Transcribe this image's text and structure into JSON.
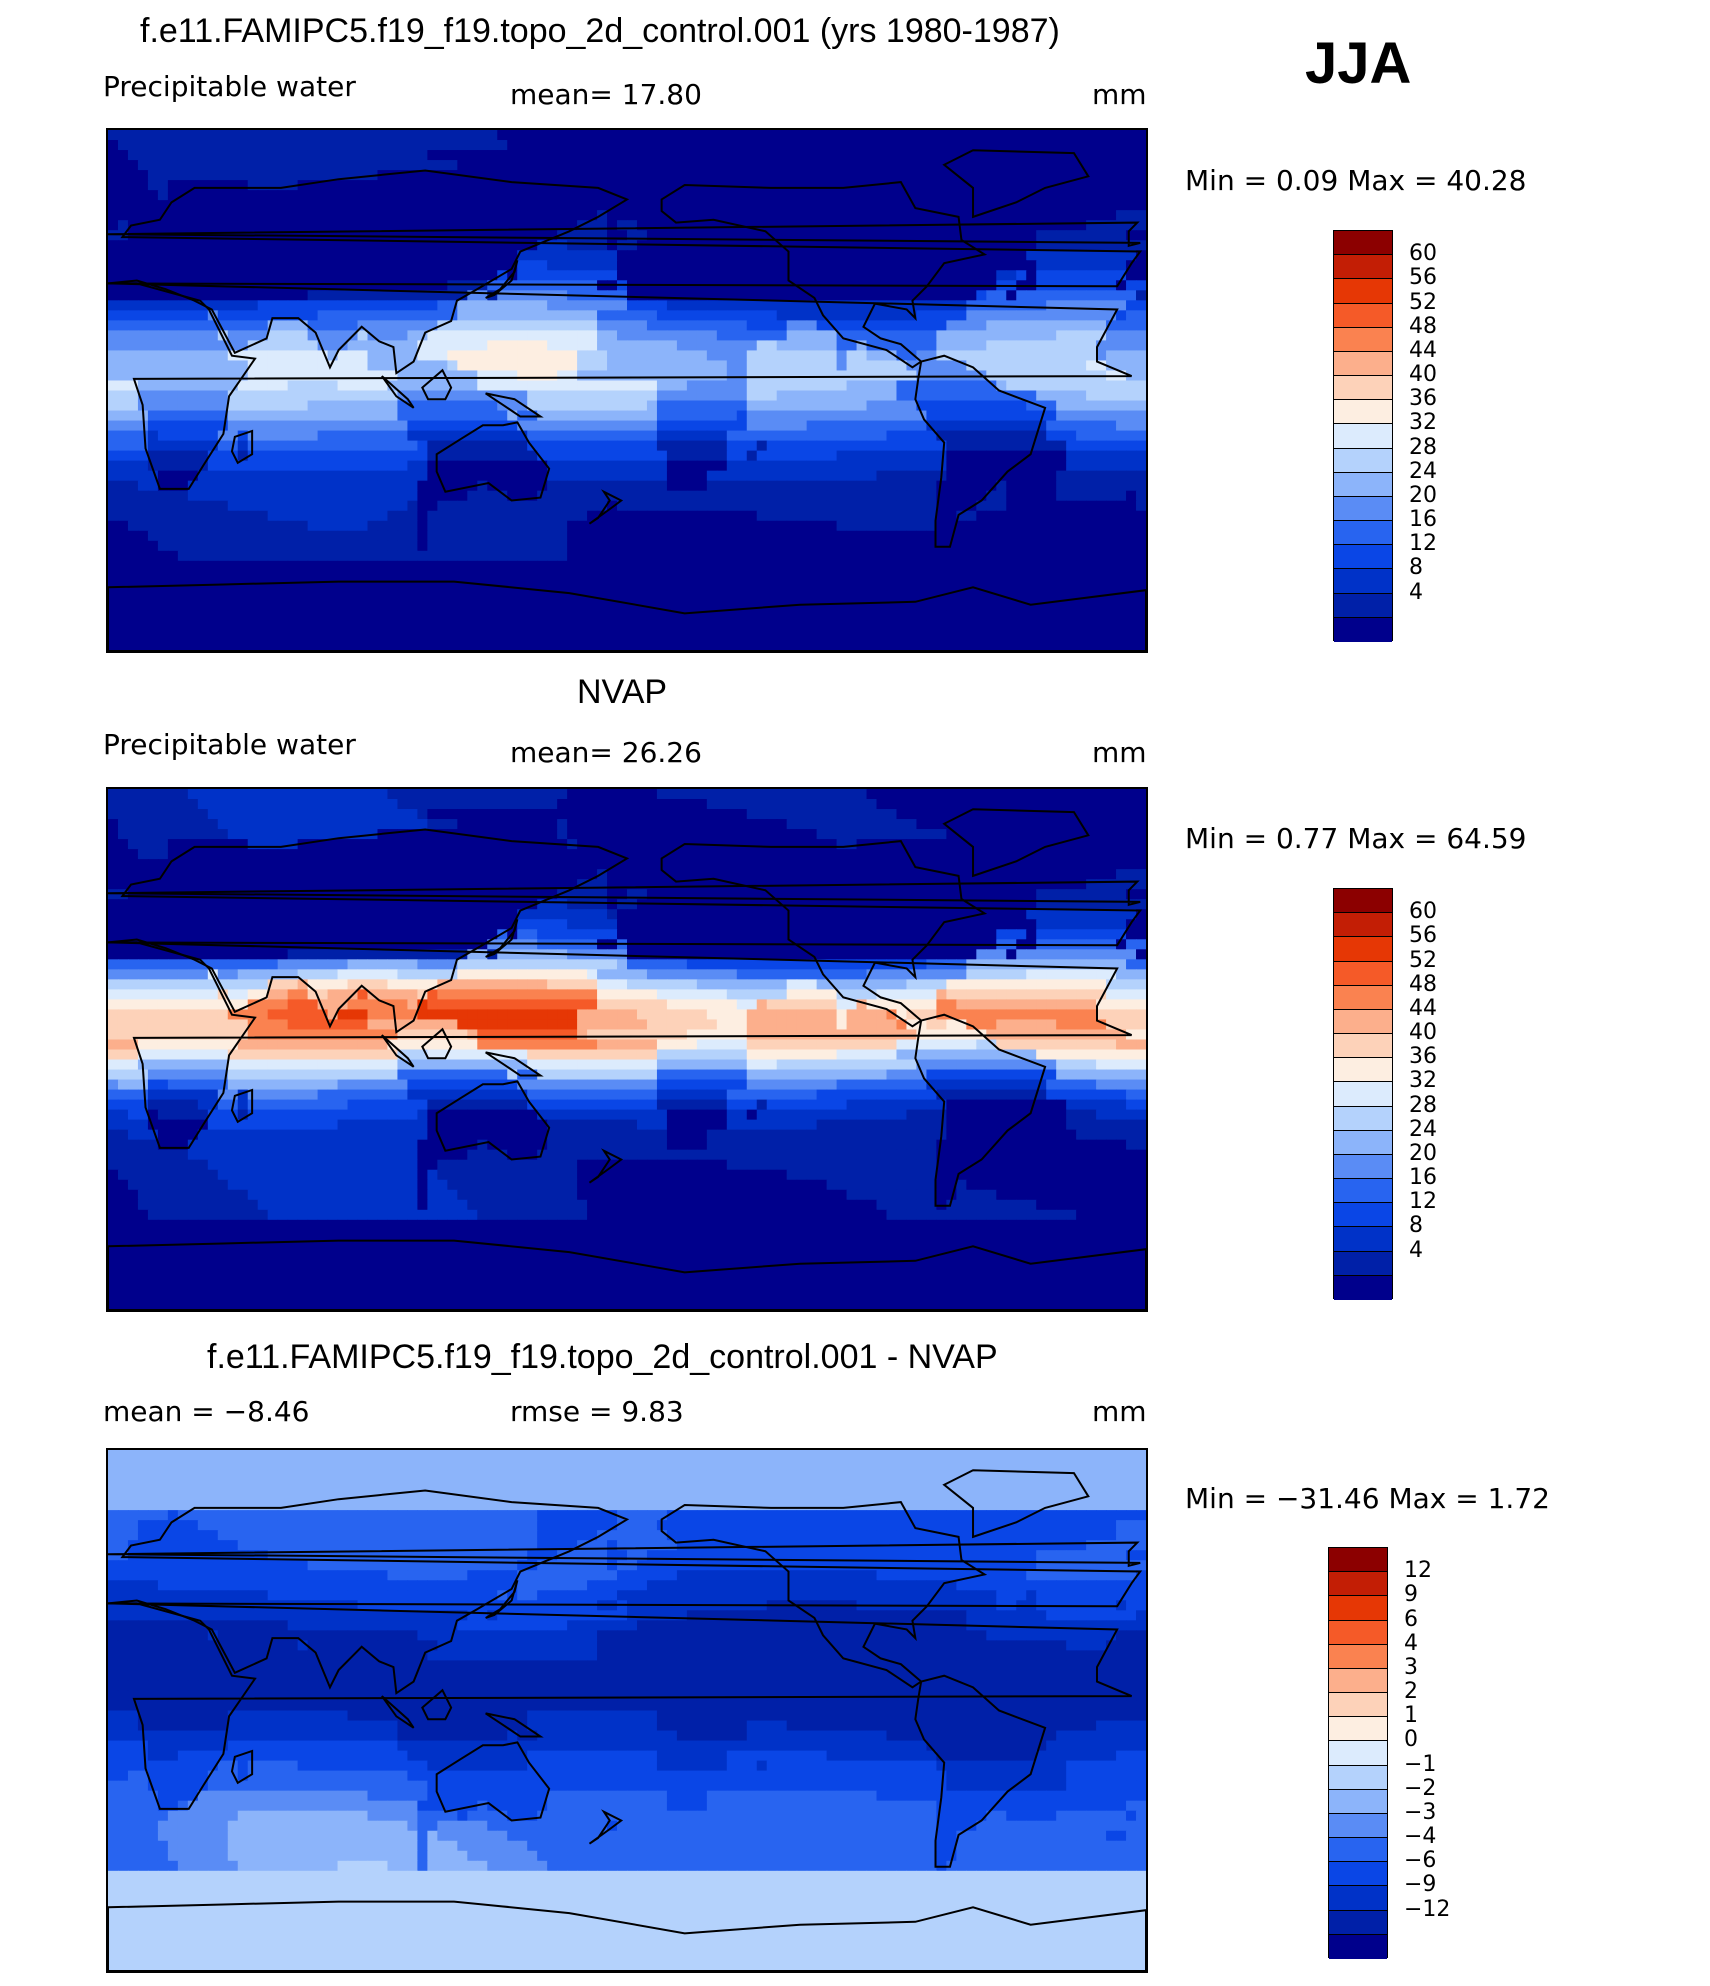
{
  "season": "JJA",
  "colors": {
    "abs": [
      "#00008c",
      "#0020a8",
      "#0032c8",
      "#0a46e6",
      "#2864f0",
      "#5a8cf5",
      "#8cb4fa",
      "#b4d2fc",
      "#dcebfd",
      "#fdeee1",
      "#fdd2b9",
      "#fcaf8c",
      "#fa8250",
      "#f55a28",
      "#e63705",
      "#c31e05",
      "#8c0000"
    ],
    "diff": [
      "#00008c",
      "#0020a8",
      "#0032c8",
      "#0a46e6",
      "#2864f0",
      "#5a8cf5",
      "#8cb4fa",
      "#b4d2fc",
      "#dcebfd",
      "#fdeee1",
      "#fdd2b9",
      "#fcaf8c",
      "#fa8250",
      "#f55a28",
      "#e63705",
      "#c31e05",
      "#8c0000"
    ]
  },
  "panels": [
    {
      "title": "f.e11.FAMIPC5.f19_f19.topo_2d_control.001 (yrs 1980-1987)",
      "left_label": "Precipitable  water",
      "center_label": "mean=   17.80",
      "units": "mm",
      "minmax": "Min  =    0.09  Max  =   40.28",
      "levels": [
        "60",
        "56",
        "52",
        "48",
        "44",
        "40",
        "36",
        "32",
        "28",
        "24",
        "20",
        "16",
        "12",
        "8",
        "4"
      ],
      "pattern": "model"
    },
    {
      "title": "NVAP",
      "left_label": "Precipitable  water",
      "center_label": "mean=   26.26",
      "units": "mm",
      "minmax": "Min  =    0.77  Max  =   64.59",
      "levels": [
        "60",
        "56",
        "52",
        "48",
        "44",
        "40",
        "36",
        "32",
        "28",
        "24",
        "20",
        "16",
        "12",
        "8",
        "4"
      ],
      "pattern": "obs"
    },
    {
      "title": "f.e11.FAMIPC5.f19_f19.topo_2d_control.001 - NVAP",
      "left_label": "mean  =    −8.46",
      "center_label": "rmse  =      9.83",
      "units": "mm",
      "minmax": "Min  = −31.46  Max  =     1.72",
      "levels": [
        "12",
        "9",
        "6",
        "4",
        "3",
        "2",
        "1",
        "0",
        "−1",
        "−2",
        "−3",
        "−4",
        "−6",
        "−9",
        "−12"
      ],
      "pattern": "diff"
    }
  ]
}
